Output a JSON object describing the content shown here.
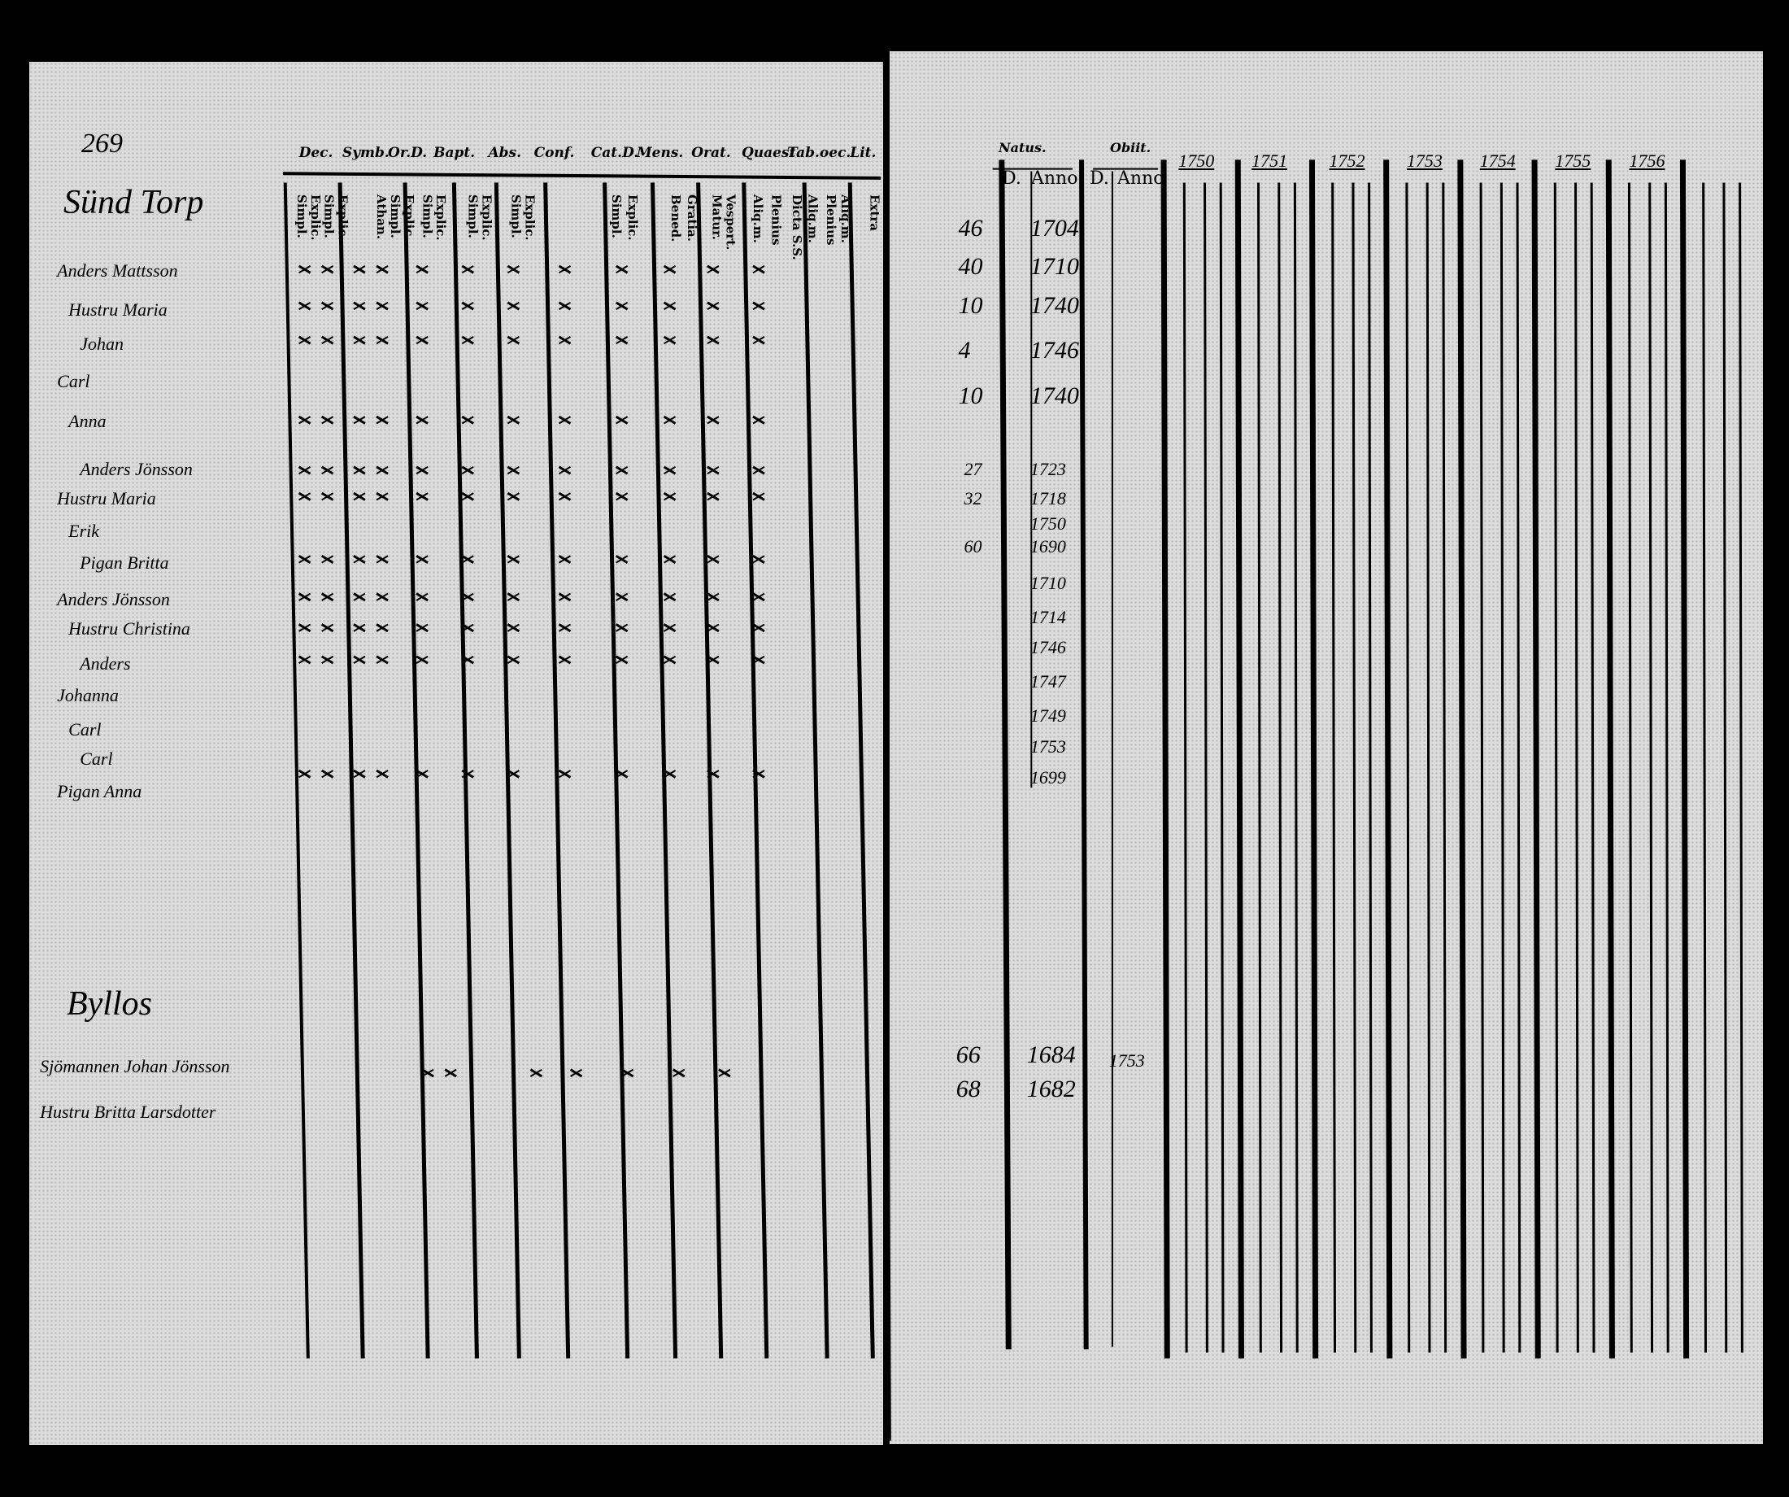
{
  "page_number": "269",
  "left_page": {
    "header_labels": [
      "Dec.",
      "Symb.",
      "Or.D.",
      "Bapt.",
      "Abs.",
      "Conf.",
      "Cat.D.",
      "Mens.",
      "Orat.",
      "Quaest.",
      "Tab.oec.",
      "Lit."
    ],
    "sub_headers": [
      "Simpl.",
      "Explic.",
      "Simpl.",
      "Explic.",
      "Athan.",
      "Simpl.",
      "Explic.",
      "Simpl.",
      "Explic.",
      "Simpl.",
      "Explic.",
      "Simpl.",
      "Explic.",
      "Simpl.",
      "Explic.",
      "Bened.",
      "Gratia.",
      "Matur.",
      "Vespert.",
      "Aliq.m.",
      "Plenius",
      "Dicta S.S.",
      "Aliq.m.",
      "Plenius",
      "Aliq.m.",
      "Extra"
    ],
    "village_1": "Sünd Torp",
    "village_1_names": [
      "Anders Mattsson",
      "Hustru Maria",
      "Johan",
      "Carl",
      "Anna",
      "Anders Jönsson",
      "Hustru Maria",
      "Erik",
      "Pigan Britta",
      "Anders Jönsson",
      "Hustru Christina",
      "Anders",
      "Johanna",
      "Carl",
      "Carl",
      "Pigan Anna"
    ],
    "village_2": "Byllos",
    "village_2_names": [
      "Sjömannen Johan Jönsson",
      "Hustru Britta Larsdotter"
    ]
  },
  "right_page": {
    "natus_label": "Natus.",
    "obiit_label": "Obiit.",
    "day_label": "D.",
    "anno_label": "Anno",
    "years": [
      "1750",
      "1751",
      "1752",
      "1753",
      "1754",
      "1755",
      "1756"
    ],
    "village_1_entries": [
      {
        "day": "46",
        "anno": "1704"
      },
      {
        "day": "40",
        "anno": "1710"
      },
      {
        "day": "10",
        "anno": "1740"
      },
      {
        "day": "4",
        "anno": "1746"
      },
      {
        "day": "10",
        "anno": "1740"
      },
      {
        "day": "27",
        "anno": "1723"
      },
      {
        "day": "32",
        "anno": "1718"
      },
      {
        "day": "",
        "anno": "1750"
      },
      {
        "day": "60",
        "anno": "1690"
      },
      {
        "day": "",
        "anno": "1710"
      },
      {
        "day": "",
        "anno": "1714"
      },
      {
        "day": "",
        "anno": "1746"
      },
      {
        "day": "",
        "anno": "1747"
      },
      {
        "day": "",
        "anno": "1749"
      },
      {
        "day": "",
        "anno": "1753"
      },
      {
        "day": "",
        "anno": "1699"
      }
    ],
    "village_2_entries": [
      {
        "day": "66",
        "anno": "1684",
        "obiit_anno": "1753"
      },
      {
        "day": "68",
        "anno": "1682",
        "obiit_anno": ""
      }
    ]
  }
}
